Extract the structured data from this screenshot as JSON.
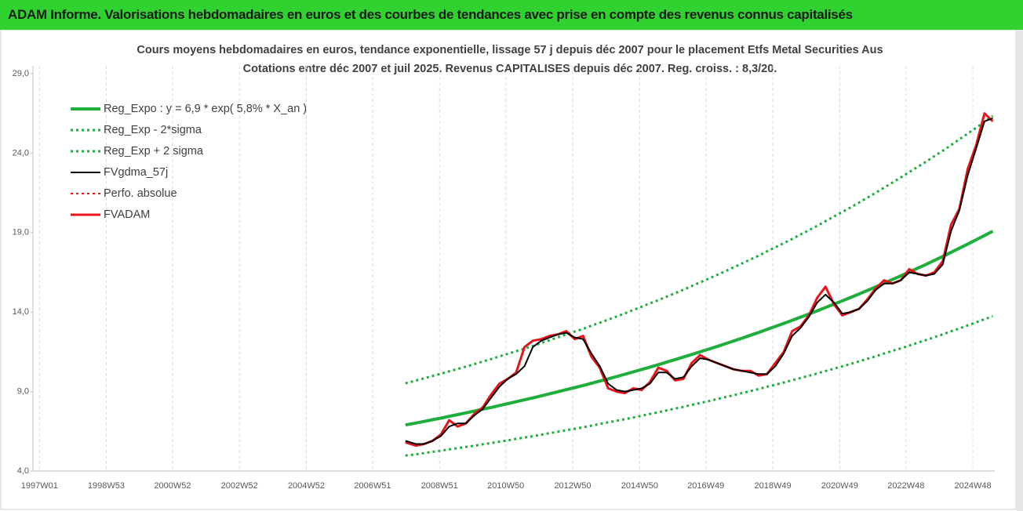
{
  "header": {
    "title": "ADAM Informe. Valorisations hebdomadaires en euros et des courbes de tendances avec prise en compte des revenus connus capitalisés"
  },
  "chart_data": {
    "type": "line",
    "title": "Cours moyens hebdomadaires en euros, tendance exponentielle, lissage 57 j depuis déc 2007 pour le placement Etfs Metal Securities Aus",
    "subtitle": "Cotations entre déc 2007 et juil 2025. Revenus CAPITALISES depuis déc 2007. Reg. croiss. : 8,3/20.",
    "legend": "upper left",
    "xlim": [
      "1996W43",
      "2025W30"
    ],
    "xticks": [
      "1997W01",
      "1998W53",
      "2000W52",
      "2002W52",
      "2004W52",
      "2006W51",
      "2008W51",
      "2010W50",
      "2012W50",
      "2014W50",
      "2016W49",
      "2018W49",
      "2020W49",
      "2022W48",
      "2024W48"
    ],
    "ylim": [
      4,
      29
    ],
    "yticks": [
      {
        "value": 4,
        "label": "4,0"
      },
      {
        "value": 9,
        "label": "9,0"
      },
      {
        "value": 14,
        "label": "14,0"
      },
      {
        "value": 19,
        "label": "19,0"
      },
      {
        "value": 24,
        "label": "24,0"
      },
      {
        "value": 29,
        "label": "29,0"
      }
    ],
    "x": [
      "2007W50",
      "2008W14",
      "2008W27",
      "2008W40",
      "2009W01",
      "2009W14",
      "2009W27",
      "2009W40",
      "2010W01",
      "2010W14",
      "2010W27",
      "2010W40",
      "2011W01",
      "2011W14",
      "2011W27",
      "2011W40",
      "2012W01",
      "2012W14",
      "2012W27",
      "2012W40",
      "2013W01",
      "2013W14",
      "2013W27",
      "2013W40",
      "2014W01",
      "2014W14",
      "2014W27",
      "2014W40",
      "2015W01",
      "2015W14",
      "2015W27",
      "2015W40",
      "2016W01",
      "2016W14",
      "2016W27",
      "2016W40",
      "2017W01",
      "2017W14",
      "2017W27",
      "2017W40",
      "2018W01",
      "2018W14",
      "2018W27",
      "2018W40",
      "2019W01",
      "2019W14",
      "2019W27",
      "2019W40",
      "2020W01",
      "2020W14",
      "2020W27",
      "2020W40",
      "2021W01",
      "2021W14",
      "2021W27",
      "2021W40",
      "2022W01",
      "2022W14",
      "2022W27",
      "2022W40",
      "2023W01",
      "2023W14",
      "2023W27",
      "2023W40",
      "2024W01",
      "2024W14",
      "2024W27",
      "2024W40",
      "2025W01",
      "2025W14",
      "2025W27"
    ],
    "series": [
      {
        "name": "Reg_Expo : y = 6,9 * exp( 5,8% *  X_an )",
        "color": "#1fae3c",
        "style": "solid",
        "width": 4,
        "values": [
          6.9,
          7.02,
          7.12,
          7.23,
          7.33,
          7.44,
          7.55,
          7.66,
          7.77,
          7.89,
          8.0,
          8.12,
          8.24,
          8.36,
          8.48,
          8.6,
          8.73,
          8.86,
          8.99,
          9.12,
          9.25,
          9.38,
          9.52,
          9.66,
          9.8,
          9.94,
          10.09,
          10.24,
          10.39,
          10.54,
          10.69,
          10.85,
          11.01,
          11.17,
          11.33,
          11.5,
          11.67,
          11.83,
          12.01,
          12.18,
          12.36,
          12.54,
          12.72,
          12.91,
          13.1,
          13.29,
          13.48,
          13.68,
          13.88,
          14.08,
          14.29,
          14.5,
          14.71,
          14.92,
          15.14,
          15.36,
          15.59,
          15.82,
          16.05,
          16.28,
          16.52,
          16.76,
          17.0,
          17.25,
          17.5,
          17.76,
          18.02,
          18.28,
          18.55,
          18.82,
          19.09
        ]
      },
      {
        "name": "Reg_Exp - 2*sigma",
        "color": "#1fae3c",
        "style": "dotted",
        "width": 3,
        "values": [
          4.97,
          5.05,
          5.13,
          5.21,
          5.28,
          5.36,
          5.44,
          5.52,
          5.59,
          5.68,
          5.76,
          5.85,
          5.93,
          6.02,
          6.11,
          6.19,
          6.29,
          6.38,
          6.47,
          6.57,
          6.66,
          6.75,
          6.85,
          6.96,
          7.06,
          7.16,
          7.26,
          7.37,
          7.48,
          7.59,
          7.7,
          7.81,
          7.93,
          8.04,
          8.16,
          8.28,
          8.4,
          8.52,
          8.65,
          8.77,
          8.9,
          9.03,
          9.16,
          9.3,
          9.43,
          9.57,
          9.71,
          9.85,
          9.99,
          10.14,
          10.29,
          10.44,
          10.59,
          10.74,
          10.9,
          11.06,
          11.22,
          11.39,
          11.56,
          11.72,
          11.89,
          12.07,
          12.24,
          12.42,
          12.6,
          12.79,
          12.97,
          13.16,
          13.36,
          13.55,
          13.74
        ]
      },
      {
        "name": "Reg_Exp + 2 sigma",
        "color": "#1fae3c",
        "style": "dotted",
        "width": 3,
        "values": [
          9.52,
          9.69,
          9.83,
          9.98,
          10.12,
          10.27,
          10.42,
          10.57,
          10.72,
          10.89,
          11.04,
          11.21,
          11.37,
          11.54,
          11.7,
          11.87,
          12.05,
          12.23,
          12.41,
          12.59,
          12.77,
          12.94,
          13.14,
          13.33,
          13.52,
          13.72,
          13.92,
          14.13,
          14.34,
          14.55,
          14.75,
          14.97,
          15.19,
          15.41,
          15.64,
          15.87,
          16.1,
          16.33,
          16.57,
          16.81,
          17.06,
          17.31,
          17.55,
          17.82,
          18.08,
          18.34,
          18.6,
          18.88,
          19.15,
          19.43,
          19.72,
          20.01,
          20.3,
          20.59,
          20.89,
          21.2,
          21.51,
          21.83,
          22.15,
          22.47,
          22.8,
          23.13,
          23.46,
          23.81,
          24.15,
          24.51,
          24.87,
          25.23,
          25.6,
          25.97,
          26.34
        ]
      },
      {
        "name": "FVgdma_57j",
        "color": "#000000",
        "style": "solid",
        "width": 2,
        "values": [
          5.9,
          5.7,
          5.7,
          5.9,
          6.2,
          6.8,
          7.0,
          7.0,
          7.5,
          7.9,
          8.6,
          9.3,
          9.8,
          10.1,
          10.6,
          11.8,
          12.2,
          12.4,
          12.6,
          12.7,
          12.4,
          12.3,
          11.4,
          10.6,
          9.5,
          9.1,
          9.0,
          9.1,
          9.2,
          9.5,
          10.2,
          10.2,
          9.8,
          9.9,
          10.6,
          11.1,
          11.0,
          10.8,
          10.6,
          10.4,
          10.3,
          10.2,
          10.1,
          10.1,
          10.6,
          11.4,
          12.5,
          13.0,
          13.7,
          14.6,
          15.1,
          14.6,
          13.9,
          14.0,
          14.2,
          14.7,
          15.4,
          15.8,
          15.8,
          16.0,
          16.5,
          16.4,
          16.3,
          16.4,
          17.0,
          19.1,
          20.4,
          22.6,
          24.3,
          26.0,
          26.2
        ]
      },
      {
        "name": "Perfo. absolue",
        "color": "#e8141a",
        "style": "dotted",
        "width": 2,
        "values": [
          5.8,
          5.6,
          5.7,
          5.9,
          6.3,
          7.2,
          6.8,
          7.0,
          7.6,
          8.0,
          8.8,
          9.5,
          9.8,
          10.2,
          11.8,
          12.2,
          12.3,
          12.5,
          12.6,
          12.8,
          12.3,
          12.5,
          11.2,
          10.5,
          9.2,
          9.0,
          8.9,
          9.2,
          9.1,
          9.6,
          10.5,
          10.3,
          9.7,
          9.8,
          10.8,
          11.3,
          11.0,
          10.8,
          10.6,
          10.4,
          10.3,
          10.3,
          10.0,
          10.1,
          10.8,
          11.5,
          12.8,
          13.1,
          13.8,
          14.9,
          15.6,
          14.5,
          13.8,
          14.0,
          14.2,
          14.8,
          15.5,
          16.0,
          15.8,
          16.0,
          16.7,
          16.4,
          16.3,
          16.5,
          17.2,
          19.5,
          20.5,
          23.0,
          24.5,
          26.5,
          26.0
        ]
      },
      {
        "name": "FVADAM",
        "color": "#e8141a",
        "style": "solid",
        "width": 3,
        "values": [
          5.8,
          5.6,
          5.7,
          5.9,
          6.3,
          7.2,
          6.8,
          7.0,
          7.6,
          8.0,
          8.8,
          9.5,
          9.8,
          10.2,
          11.8,
          12.2,
          12.3,
          12.5,
          12.6,
          12.8,
          12.3,
          12.5,
          11.2,
          10.5,
          9.2,
          9.0,
          8.9,
          9.2,
          9.1,
          9.6,
          10.5,
          10.3,
          9.7,
          9.8,
          10.8,
          11.3,
          11.0,
          10.8,
          10.6,
          10.4,
          10.3,
          10.3,
          10.0,
          10.1,
          10.8,
          11.5,
          12.8,
          13.1,
          13.8,
          14.9,
          15.6,
          14.5,
          13.8,
          14.0,
          14.2,
          14.8,
          15.5,
          16.0,
          15.8,
          16.0,
          16.7,
          16.4,
          16.3,
          16.5,
          17.2,
          19.5,
          20.5,
          23.0,
          24.5,
          26.5,
          26.0
        ]
      }
    ]
  }
}
